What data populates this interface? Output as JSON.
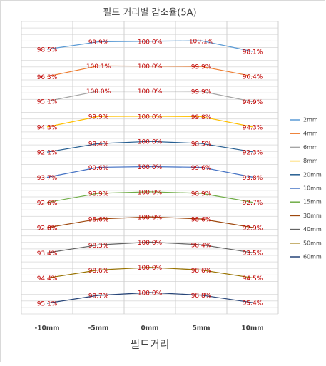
{
  "chart_data": {
    "type": "line",
    "title": "필드 거리별 감소율(5A)",
    "x_label": "필드거리",
    "categories": [
      "-10mm",
      "-5mm",
      "0mm",
      "5mm",
      "10mm"
    ],
    "series": [
      {
        "name": "2mm",
        "color": "#5b9bd5",
        "values": [
          98.5,
          99.9,
          100.0,
          100.1,
          98.1
        ],
        "value_labels": [
          "98.5%",
          "99.9%",
          "100.0%",
          "100.1%",
          "98.1%"
        ]
      },
      {
        "name": "4mm",
        "color": "#ed7d31",
        "values": [
          96.3,
          100.1,
          100.0,
          99.9,
          96.4
        ],
        "value_labels": [
          "96.3%",
          "100.1%",
          "100.0%",
          "99.9%",
          "96.4%"
        ]
      },
      {
        "name": "6mm",
        "color": "#a5a5a5",
        "values": [
          95.1,
          100.0,
          100.0,
          99.9,
          94.9
        ],
        "value_labels": [
          "95.1%",
          "100.0%",
          "100.0%",
          "99.9%",
          "94.9%"
        ]
      },
      {
        "name": "8mm",
        "color": "#ffc000",
        "values": [
          94.3,
          99.9,
          100.0,
          99.8,
          94.3
        ],
        "value_labels": [
          "94.3%",
          "99.9%",
          "100.0%",
          "99.8%",
          "94.3%"
        ]
      },
      {
        "name": "20mm",
        "color": "#255e91",
        "values": [
          92.1,
          98.4,
          100.0,
          98.5,
          92.3
        ],
        "value_labels": [
          "92.1%",
          "98.4%",
          "100.0%",
          "98.5%",
          "92.3%"
        ]
      },
      {
        "name": "10mm",
        "color": "#4472c4",
        "values": [
          93.7,
          99.6,
          100.0,
          99.6,
          93.8
        ],
        "value_labels": [
          "93.7%",
          "99.6%",
          "100.0%",
          "99.6%",
          "93.8%"
        ]
      },
      {
        "name": "15mm",
        "color": "#70ad47",
        "values": [
          92.6,
          98.9,
          100.0,
          98.9,
          92.7
        ],
        "value_labels": [
          "92.6%",
          "98.9%",
          "100.0%",
          "98.9%",
          "92.7%"
        ]
      },
      {
        "name": "30mm",
        "color": "#9e480e",
        "values": [
          92.8,
          98.6,
          100.0,
          98.6,
          92.9
        ],
        "value_labels": [
          "92.8%",
          "98.6%",
          "100.0%",
          "98.6%",
          "92.9%"
        ]
      },
      {
        "name": "40mm",
        "color": "#636363",
        "values": [
          93.4,
          98.3,
          100.0,
          98.4,
          93.5
        ],
        "value_labels": [
          "93.4%",
          "98.3%",
          "100.0%",
          "98.4%",
          "93.5%"
        ]
      },
      {
        "name": "50mm",
        "color": "#997300",
        "values": [
          94.4,
          98.6,
          100.0,
          98.6,
          94.5
        ],
        "value_labels": [
          "94.4%",
          "98.6%",
          "100.0%",
          "98.6%",
          "94.5%"
        ]
      },
      {
        "name": "60mm",
        "color": "#264478",
        "values": [
          95.1,
          98.7,
          100.0,
          98.8,
          95.4
        ],
        "value_labels": [
          "95.1%",
          "98.7%",
          "100.0%",
          "98.8%",
          "95.4%"
        ]
      }
    ],
    "legend": "right"
  }
}
